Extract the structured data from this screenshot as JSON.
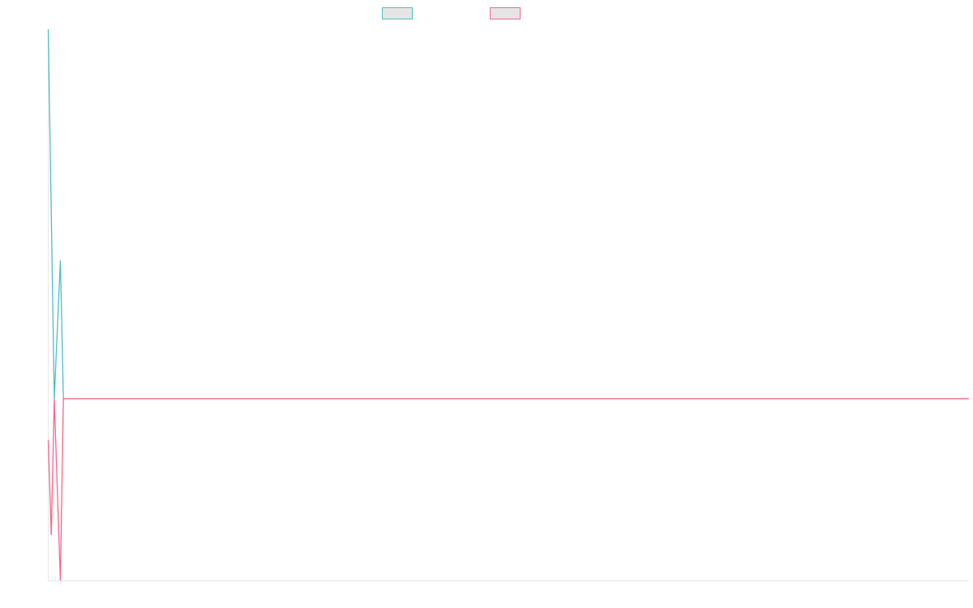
{
  "chart_data": {
    "type": "line",
    "title": "",
    "xlabel": "",
    "ylabel": "",
    "grid": false,
    "legend_position": "top-center",
    "x_range": [
      0,
      304
    ],
    "y_range": [
      -0.88,
      1.79
    ],
    "series": [
      {
        "color": "#4bc0c0",
        "values": [
          {
            "x": 0,
            "y": 1.79
          },
          {
            "x": 2,
            "y": 0
          },
          {
            "x": 4,
            "y": 0.67
          },
          {
            "x": 5,
            "y": 0
          },
          {
            "x": 304,
            "y": 0
          }
        ]
      },
      {
        "color": "#ff6384",
        "values": [
          {
            "x": 0,
            "y": -0.2
          },
          {
            "x": 1,
            "y": -0.66
          },
          {
            "x": 2,
            "y": 0
          },
          {
            "x": 4,
            "y": -0.88
          },
          {
            "x": 5,
            "y": 0
          },
          {
            "x": 304,
            "y": 0
          }
        ]
      }
    ],
    "legend": [
      {
        "label": "",
        "color": "#4bc0c0"
      },
      {
        "label": "",
        "color": "#ff6384"
      }
    ]
  }
}
